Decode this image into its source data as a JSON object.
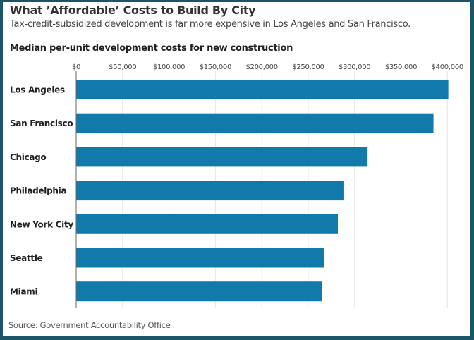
{
  "header": {
    "title": "What ’Affordable’ Costs to Build By City",
    "subtitle": "Tax-credit-subsidized development is far more expensive in Los Angeles and San Francisco.",
    "chart_title": "Median per-unit development costs for new construction"
  },
  "footer": {
    "source": "Source: Government Accountability Office"
  },
  "colors": {
    "bar": "#1279ab",
    "frame": "#1d5566",
    "grid": "#e6e6e6"
  },
  "chart_data": {
    "type": "bar",
    "orientation": "horizontal",
    "title": "Median per-unit development costs for new construction",
    "categories": [
      "Los Angeles",
      "San Francisco",
      "Chicago",
      "Philadelphia",
      "New York City",
      "Seattle",
      "Miami"
    ],
    "values": [
      401000,
      385000,
      314000,
      288000,
      282000,
      267500,
      265000
    ],
    "xlim": [
      0,
      400000
    ],
    "ticks": [
      0,
      50000,
      100000,
      150000,
      200000,
      250000,
      300000,
      350000,
      400000
    ],
    "tick_labels": [
      "$0",
      "$50,000",
      "$100,000",
      "$150,000",
      "$200,000",
      "$250,000",
      "$300,000",
      "$350,000",
      "$400,000"
    ],
    "tick_position": "top",
    "grid": true,
    "xlabel": "",
    "ylabel": ""
  }
}
